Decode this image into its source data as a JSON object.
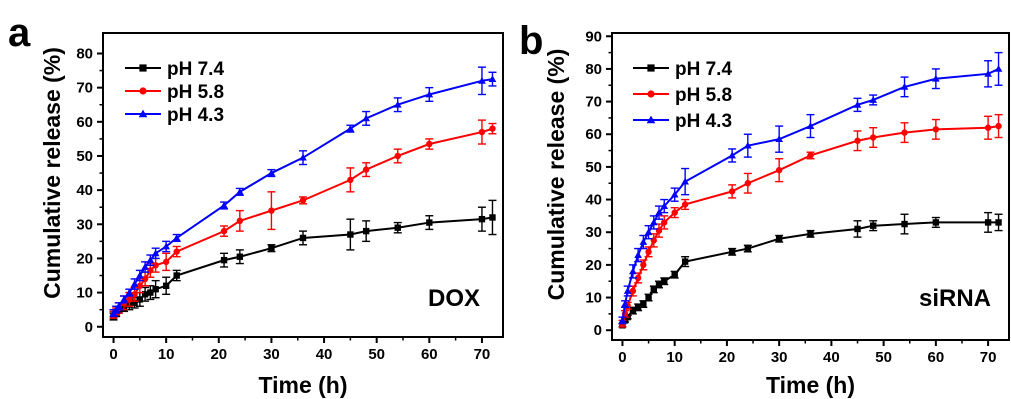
{
  "chart_data": [
    {
      "panel_label": "a",
      "type": "line",
      "annotation": "DOX",
      "xlabel": "Time (h)",
      "ylabel": "Cumulative release (%)",
      "xlim": [
        -2,
        74
      ],
      "ylim": [
        -3,
        86
      ],
      "xticks": [
        0,
        10,
        20,
        30,
        40,
        50,
        60,
        70
      ],
      "yticks": [
        0,
        10,
        20,
        30,
        40,
        50,
        60,
        70,
        80
      ],
      "legend_position": "top-left",
      "grid": false,
      "x": [
        0,
        0.5,
        1,
        2,
        3,
        4,
        5,
        6,
        7,
        8,
        10,
        12,
        21,
        24,
        30,
        36,
        45,
        48,
        54,
        60,
        70,
        72
      ],
      "series": [
        {
          "name": "pH 7.4",
          "color": "#000000",
          "marker": "square",
          "values": [
            3,
            4,
            5,
            5.5,
            6.5,
            7,
            8,
            9.5,
            10,
            11,
            12,
            15,
            19.5,
            20.5,
            23,
            26,
            27,
            28,
            29,
            30.5,
            31.5,
            32
          ],
          "errors": [
            1,
            1,
            1,
            1,
            1.5,
            1.5,
            2,
            2,
            2,
            2.5,
            2.5,
            1.5,
            2,
            2,
            1,
            2,
            4.5,
            3,
            1.5,
            2,
            3.5,
            5
          ]
        },
        {
          "name": "pH 5.8",
          "color": "#ff0000",
          "marker": "circle",
          "values": [
            3.5,
            4.5,
            5.5,
            7,
            8,
            9.5,
            12,
            14,
            16.5,
            18,
            19,
            22,
            28,
            31,
            34,
            37,
            43,
            46,
            50,
            53.5,
            57,
            58
          ],
          "errors": [
            1,
            1,
            1.5,
            2,
            2,
            2,
            2,
            2,
            2,
            2,
            2.5,
            1.5,
            1.5,
            3,
            5.5,
            1,
            3.5,
            2,
            2,
            1.5,
            3.5,
            1.5
          ]
        },
        {
          "name": "pH 4.3",
          "color": "#0000ff",
          "marker": "triangle",
          "values": [
            4,
            5,
            6,
            8,
            10,
            12.5,
            15,
            17.5,
            19.5,
            21.5,
            23.5,
            26,
            35.5,
            39.5,
            45,
            49.5,
            58,
            61,
            65,
            68,
            72,
            72.5
          ],
          "errors": [
            1,
            1,
            1,
            1,
            1,
            1.5,
            1.5,
            1.5,
            1.5,
            1.5,
            1.5,
            1,
            1,
            1,
            1,
            2,
            1,
            2,
            2,
            2,
            4,
            2
          ]
        }
      ]
    },
    {
      "panel_label": "b",
      "type": "line",
      "annotation": "siRNA",
      "xlabel": "Time (h)",
      "ylabel": "Cumulative release (%)",
      "xlim": [
        -2,
        74
      ],
      "ylim": [
        -3,
        91
      ],
      "xticks": [
        0,
        10,
        20,
        30,
        40,
        50,
        60,
        70
      ],
      "yticks": [
        0,
        10,
        20,
        30,
        40,
        50,
        60,
        70,
        80,
        90
      ],
      "legend_position": "top-left",
      "grid": false,
      "x": [
        0,
        0.5,
        1,
        2,
        3,
        4,
        5,
        6,
        7,
        8,
        10,
        12,
        21,
        24,
        30,
        36,
        45,
        48,
        54,
        60,
        70,
        72
      ],
      "series": [
        {
          "name": "pH 7.4",
          "color": "#000000",
          "marker": "square",
          "values": [
            1.5,
            3,
            4,
            6,
            7,
            8,
            10,
            12.5,
            14,
            15,
            17,
            21,
            24,
            25,
            28,
            29.5,
            31,
            32,
            32.5,
            33,
            33,
            33
          ],
          "errors": [
            0.5,
            0.5,
            0.5,
            1,
            1,
            1,
            1,
            1,
            1,
            1,
            1,
            1.5,
            1,
            1,
            1,
            1,
            2.5,
            1.5,
            3,
            1.5,
            3,
            2.5
          ]
        },
        {
          "name": "pH 5.8",
          "color": "#ff0000",
          "marker": "circle",
          "values": [
            2,
            5,
            7.5,
            12,
            16,
            20,
            24,
            27.5,
            30.5,
            33,
            36,
            38.5,
            42.5,
            45,
            49,
            53.5,
            58,
            59,
            60.5,
            61.5,
            62,
            62.5
          ],
          "errors": [
            1,
            1,
            1,
            1.5,
            1.5,
            1.5,
            1.5,
            2,
            2,
            2,
            1.5,
            1.5,
            2,
            3,
            3.5,
            1,
            3,
            3,
            3,
            3,
            3.5,
            3.5
          ]
        },
        {
          "name": "pH 4.3",
          "color": "#0000ff",
          "marker": "triangle",
          "values": [
            3,
            8,
            12,
            18,
            23,
            27,
            30,
            33,
            36,
            38,
            41.5,
            45.5,
            53.5,
            56.5,
            58.5,
            62.5,
            69,
            70.5,
            74.5,
            77,
            78.5,
            80
          ],
          "errors": [
            1,
            1,
            1.5,
            2,
            2,
            2,
            2,
            2,
            2,
            2,
            2,
            4,
            2,
            3.5,
            4,
            3.5,
            2,
            1.5,
            3,
            3,
            4,
            5
          ]
        }
      ]
    }
  ]
}
